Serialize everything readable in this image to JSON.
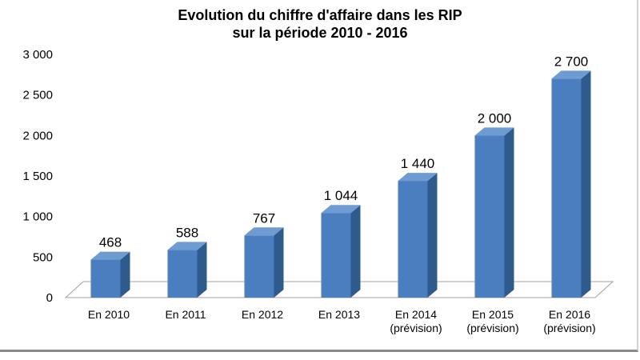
{
  "chart_data": {
    "type": "bar",
    "title_line1": "Evolution du chiffre d'affaire dans les RIP",
    "title_line2": "sur la période 2010 - 2016",
    "categories": [
      [
        "En 2010"
      ],
      [
        "En 2011"
      ],
      [
        "En 2012"
      ],
      [
        "En 2013"
      ],
      [
        "En 2014",
        "(prévision)"
      ],
      [
        "En 2015",
        "(prévision)"
      ],
      [
        "En 2016",
        "(prévision)"
      ]
    ],
    "values": [
      468,
      588,
      767,
      1044,
      1440,
      2000,
      2700
    ],
    "value_labels": [
      "468",
      "588",
      "767",
      "1 044",
      "1 440",
      "2 000",
      "2 700"
    ],
    "yticks": [
      0,
      500,
      1000,
      1500,
      2000,
      2500,
      3000
    ],
    "ytick_labels": [
      "0",
      "500",
      "1 000",
      "1 500",
      "2 000",
      "2 500",
      "3 000"
    ],
    "ylim": [
      0,
      3000
    ],
    "bar_color": "#4a7ebf",
    "bar_side_color": "#2f5a8e",
    "bar_top_color": "#6f9bd3"
  }
}
